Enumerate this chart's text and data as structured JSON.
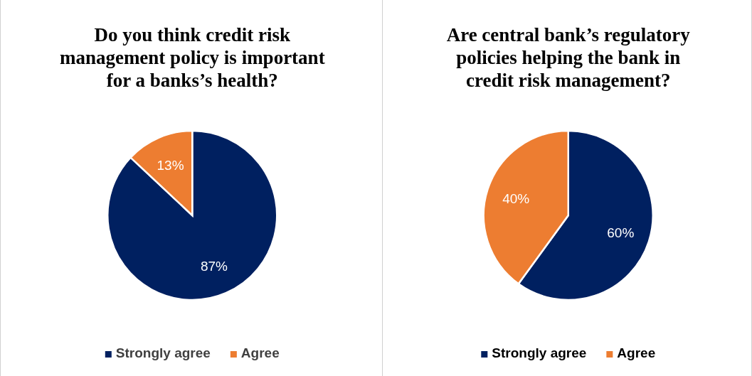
{
  "chart_data": [
    {
      "type": "pie",
      "title": "Do you think credit risk management policy is important for a banks’s health?",
      "categories": [
        "Strongly agree",
        "Agree"
      ],
      "values": [
        87,
        13
      ],
      "colors": [
        "#002060",
        "#ed7d31"
      ],
      "value_labels": [
        "87%",
        "13%"
      ],
      "legend": "bottom"
    },
    {
      "type": "pie",
      "title": "Are central bank’s regulatory policies helping the bank in credit risk management?",
      "categories": [
        "Strongly agree",
        "Agree"
      ],
      "values": [
        60,
        40
      ],
      "colors": [
        "#002060",
        "#ed7d31"
      ],
      "value_labels": [
        "60%",
        "40%"
      ],
      "legend": "bottom"
    }
  ]
}
